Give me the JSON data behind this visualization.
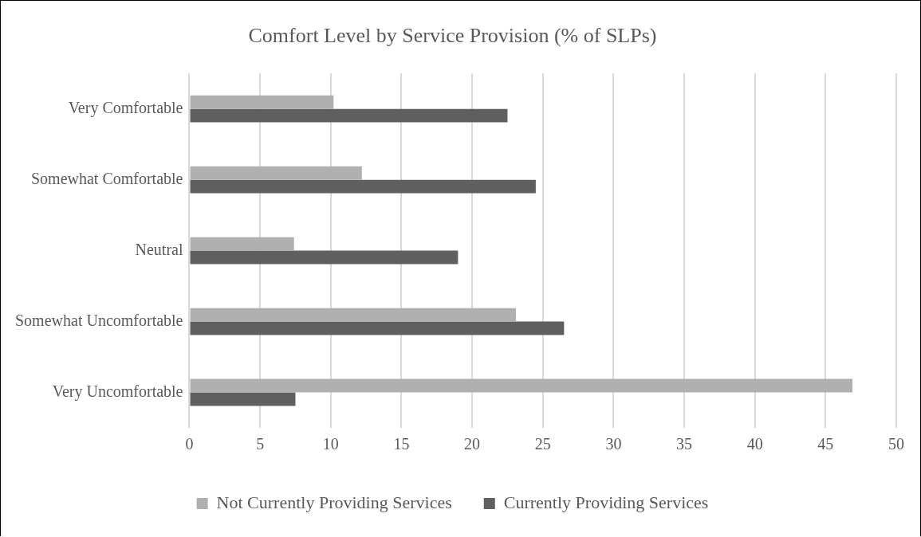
{
  "chart_data": {
    "type": "bar",
    "orientation": "horizontal",
    "title": "Comfort Level by Service Provision (% of SLPs)",
    "categories": [
      "Very Comfortable",
      "Somewhat Comfortable",
      "Neutral",
      "Somewhat Uncomfortable",
      "Very Uncomfortable"
    ],
    "series": [
      {
        "name": "Not Currently Providing Services",
        "color": "#b0b0b0",
        "values": [
          10.2,
          12.2,
          7.4,
          23.1,
          46.9
        ]
      },
      {
        "name": "Currently Providing Services",
        "color": "#5f5f5f",
        "values": [
          22.5,
          24.5,
          19.0,
          26.5,
          7.5
        ]
      }
    ],
    "xlim": [
      0,
      50
    ],
    "xticks": [
      0,
      5,
      10,
      15,
      20,
      25,
      30,
      35,
      40,
      45,
      50
    ],
    "grid": "x",
    "legend": "bottom"
  }
}
